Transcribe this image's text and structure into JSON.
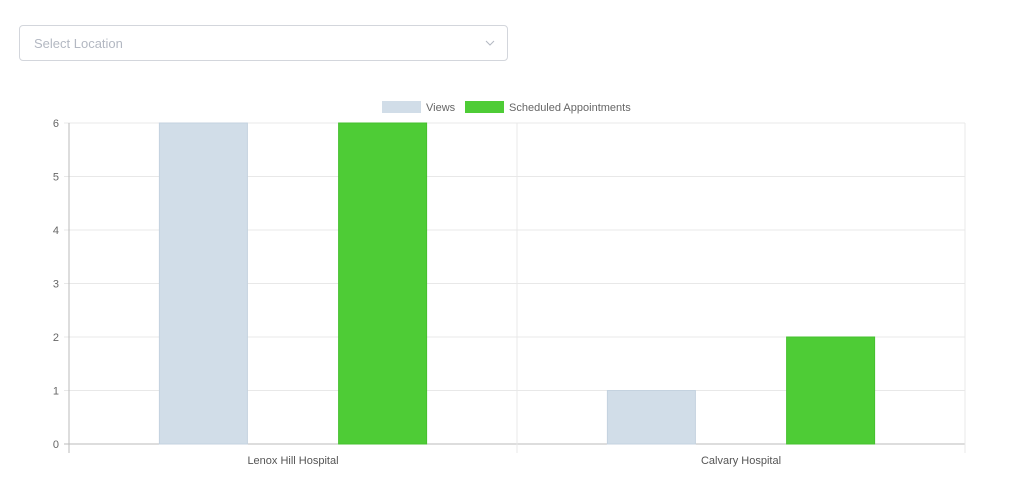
{
  "location_select": {
    "placeholder": "Select Location",
    "icon": "chevron-down-icon"
  },
  "chart_data": {
    "type": "bar",
    "categories": [
      "Lenox Hill Hospital",
      "Calvary Hospital"
    ],
    "series": [
      {
        "name": "Views",
        "values": [
          6,
          1
        ],
        "color": "#d1dde8"
      },
      {
        "name": "Scheduled Appointments",
        "values": [
          6,
          2
        ],
        "color": "#4ecc36"
      }
    ],
    "ylim": [
      0,
      6
    ],
    "yticks": [
      0,
      1,
      2,
      3,
      4,
      5,
      6
    ],
    "grid": true,
    "legend": "top-center"
  }
}
